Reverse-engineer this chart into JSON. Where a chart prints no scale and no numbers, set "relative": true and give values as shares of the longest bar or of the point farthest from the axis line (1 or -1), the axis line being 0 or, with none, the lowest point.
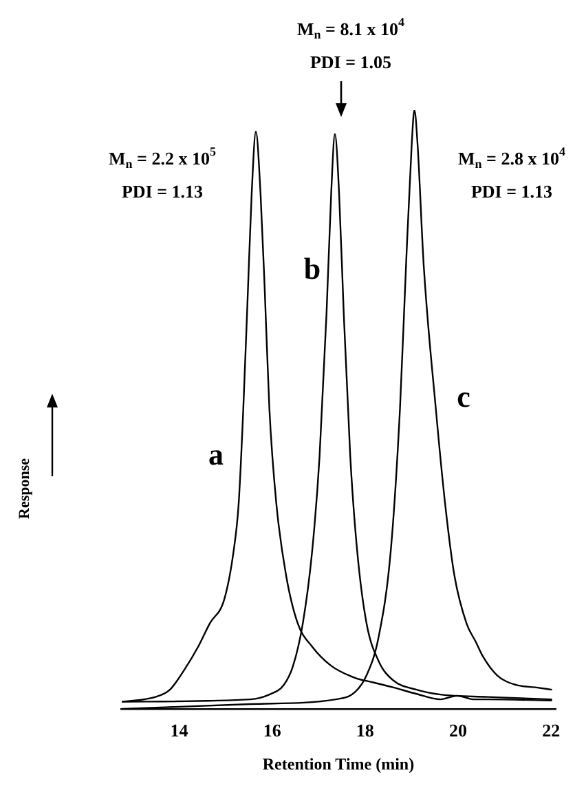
{
  "chart_data": {
    "type": "line",
    "relative": true,
    "xlabel": "Retention Time (min)",
    "xlim": [
      12.75,
      22.1
    ],
    "xticks": [
      14,
      16,
      18,
      20,
      22
    ],
    "grid": false,
    "legend": false,
    "marker": "none",
    "line_style": "solid",
    "series": [
      {
        "name": "a",
        "color": "#000000",
        "x": [
          12.77,
          13.49,
          13.8,
          14.1,
          14.41,
          14.66,
          14.97,
          15.17,
          15.28,
          15.38,
          15.48,
          15.56,
          15.65,
          15.75,
          15.84,
          15.94,
          16.09,
          16.3,
          16.55,
          16.86,
          17.27,
          17.78,
          18.19,
          18.6,
          19.11,
          19.62,
          19.98,
          20.33,
          20.64,
          22.02
        ],
        "values": [
          0.012,
          0.02,
          0.032,
          0.064,
          0.104,
          0.143,
          0.183,
          0.263,
          0.343,
          0.502,
          0.701,
          0.861,
          0.964,
          0.861,
          0.701,
          0.502,
          0.343,
          0.223,
          0.143,
          0.104,
          0.072,
          0.052,
          0.044,
          0.036,
          0.025,
          0.016,
          0.022,
          0.016,
          0.016,
          0.014
        ]
      },
      {
        "name": "b",
        "color": "#000000",
        "x": [
          12.77,
          15.53,
          15.94,
          16.25,
          16.45,
          16.66,
          16.86,
          17.02,
          17.17,
          17.27,
          17.35,
          17.44,
          17.54,
          17.68,
          17.83,
          18.03,
          18.29,
          18.6,
          19.11,
          19.62,
          20.64,
          22.02
        ],
        "values": [
          0.012,
          0.016,
          0.024,
          0.04,
          0.072,
          0.143,
          0.263,
          0.422,
          0.661,
          0.861,
          0.96,
          0.861,
          0.661,
          0.422,
          0.263,
          0.143,
          0.08,
          0.048,
          0.032,
          0.024,
          0.02,
          0.016
        ]
      },
      {
        "name": "c",
        "color": "#000000",
        "x": [
          12.77,
          15.53,
          17.37,
          17.78,
          18.03,
          18.29,
          18.55,
          18.75,
          18.88,
          19.0,
          19.06,
          19.13,
          19.26,
          19.52,
          19.72,
          19.92,
          20.18,
          20.38,
          20.53,
          20.84,
          21.25,
          21.66,
          22.02
        ],
        "values": [
          0,
          0.008,
          0.016,
          0.028,
          0.056,
          0.12,
          0.263,
          0.502,
          0.741,
          0.94,
          1,
          0.94,
          0.741,
          0.502,
          0.343,
          0.223,
          0.143,
          0.112,
          0.088,
          0.056,
          0.04,
          0.036,
          0.032
        ]
      }
    ],
    "annotations": [
      "M$_{n}$ = 8.1 x 10$^{4}$",
      "PDI = 1.05",
      "M$_{n}$ = 2.2 x 10$^{5}$",
      "PDI = 1.13",
      "M$_{n}$ = 2.8 x 10$^{4}$",
      "PDI = 1.13",
      "Response"
    ]
  }
}
